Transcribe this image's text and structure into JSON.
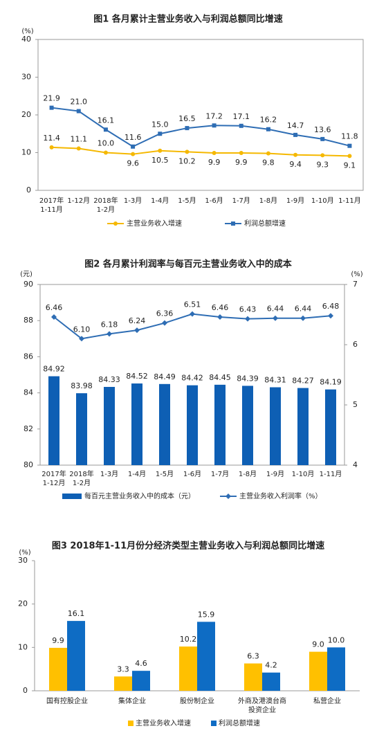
{
  "chart_data": [
    {
      "type": "line",
      "title": "图1 各月累计主营业务收入与利润总额同比增速",
      "y_label": "(%)",
      "categories": [
        [
          "2017年",
          "1-11月"
        ],
        "1-12月",
        [
          "2018年",
          "1-2月"
        ],
        "1-3月",
        "1-4月",
        "1-5月",
        "1-6月",
        "1-7月",
        "1-8月",
        "1-9月",
        "1-10月",
        "1-11月"
      ],
      "ylim": [
        0,
        40
      ],
      "yticks": [
        0,
        10,
        20,
        30,
        40
      ],
      "series": [
        {
          "name": "主营业务收入增速",
          "color": "#f5b800",
          "values": [
            11.4,
            11.1,
            10.0,
            9.6,
            10.5,
            10.2,
            9.9,
            9.9,
            9.8,
            9.4,
            9.3,
            9.1
          ],
          "value_labels": [
            "11.4",
            "11.1",
            "10.0",
            "9.6",
            "10.5",
            "10.2",
            "9.9",
            "9.9",
            "9.8",
            "9.4",
            "9.3",
            "9.1"
          ]
        },
        {
          "name": "利润总额增速",
          "color": "#2e6db4",
          "values": [
            21.9,
            21.0,
            16.1,
            11.6,
            15.0,
            16.5,
            17.2,
            17.1,
            16.2,
            14.7,
            13.6,
            11.8
          ],
          "value_labels": [
            "21.9",
            "21.0",
            "16.1",
            "11.6",
            "15.0",
            "16.5",
            "17.2",
            "17.1",
            "16.2",
            "14.7",
            "13.6",
            "11.8"
          ]
        }
      ]
    },
    {
      "type": "combo",
      "title": "图2 各月累计利润率与每百元主营业务收入中的成本",
      "y_label": "(元)",
      "y2_label": "(%)",
      "categories": [
        [
          "2017年",
          "1-12月"
        ],
        [
          "2018年",
          "1-2月"
        ],
        "1-3月",
        "1-4月",
        "1-5月",
        "1-6月",
        "1-7月",
        "1-8月",
        "1-9月",
        "1-10月",
        "1-11月"
      ],
      "ylim": [
        80,
        90
      ],
      "yticks": [
        80,
        82,
        84,
        86,
        88,
        90
      ],
      "y2lim": [
        4,
        7
      ],
      "y2ticks": [
        4,
        5,
        6,
        7
      ],
      "series": [
        {
          "name": "每百元主营业务收入中的成本（元）",
          "type": "bar",
          "color": "#0e5fb4",
          "values": [
            84.92,
            83.98,
            84.33,
            84.52,
            84.49,
            84.42,
            84.45,
            84.39,
            84.31,
            84.27,
            84.19
          ]
        },
        {
          "name": "主营业务收入利润率（%）",
          "type": "line",
          "axis": "y2",
          "color": "#2e6db4",
          "values": [
            6.46,
            6.1,
            6.18,
            6.24,
            6.36,
            6.51,
            6.46,
            6.43,
            6.44,
            6.44,
            6.48
          ],
          "value_labels": [
            "6.46",
            "6.10",
            "6.18",
            "6.24",
            "6.36",
            "6.51",
            "6.46",
            "6.43",
            "6.44",
            "6.44",
            "6.48"
          ]
        }
      ]
    },
    {
      "type": "bar",
      "title": "图3 2018年1-11月份分经济类型主营业务收入与利润总额同比增速",
      "y_label": "(%)",
      "categories": [
        "国有控股企业",
        "集体企业",
        "股份制企业",
        [
          "外商及港澳台商",
          "投资企业"
        ],
        "私营企业"
      ],
      "ylim": [
        0,
        30
      ],
      "yticks": [
        0,
        10,
        20,
        30
      ],
      "series": [
        {
          "name": "主营业务收入增速",
          "color": "#ffc000",
          "values": [
            9.9,
            3.3,
            10.2,
            6.3,
            9.0
          ],
          "value_labels": [
            "9.9",
            "3.3",
            "10.2",
            "6.3",
            "9.0"
          ]
        },
        {
          "name": "利润总额增速",
          "color": "#0e6cc4",
          "values": [
            16.1,
            4.6,
            15.9,
            4.2,
            10.0
          ],
          "value_labels": [
            "16.1",
            "4.6",
            "15.9",
            "4.2",
            "10.0"
          ]
        }
      ]
    }
  ]
}
